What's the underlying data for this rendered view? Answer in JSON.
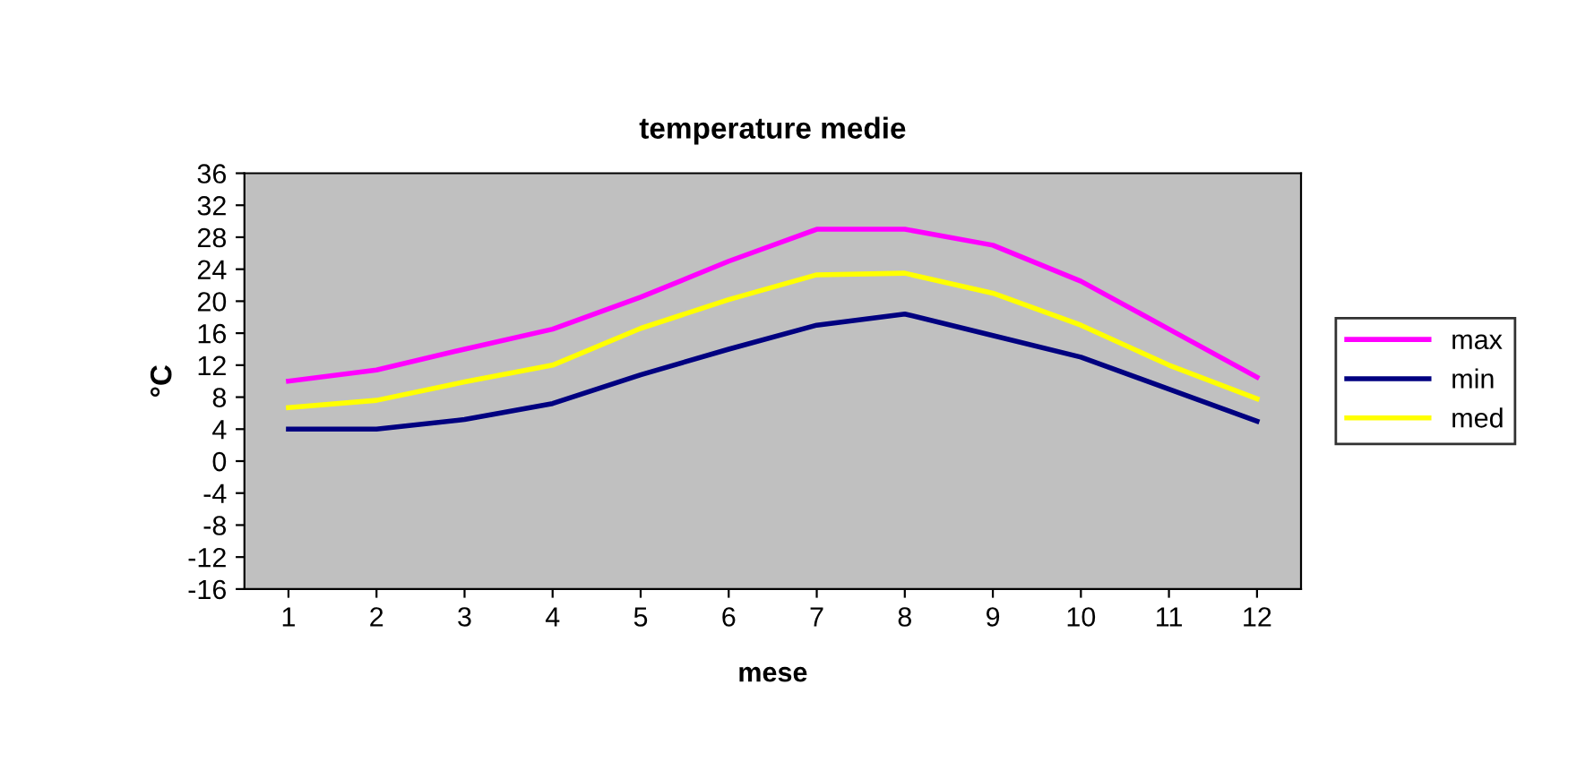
{
  "chart_data": {
    "type": "line",
    "title": "temperature medie",
    "xlabel": "mese",
    "ylabel": "°C",
    "categories": [
      "1",
      "2",
      "3",
      "4",
      "5",
      "6",
      "7",
      "8",
      "9",
      "10",
      "11",
      "12"
    ],
    "series": [
      {
        "name": "max",
        "color": "#ff00ff",
        "values": [
          10,
          11.4,
          14,
          16.5,
          20.5,
          25,
          29,
          29,
          27,
          22.5,
          16.5,
          10.5
        ]
      },
      {
        "name": "min",
        "color": "#000080",
        "values": [
          4,
          4,
          5.2,
          7.2,
          10.8,
          14,
          17,
          18.4,
          15.7,
          13,
          9,
          5
        ]
      },
      {
        "name": "med",
        "color": "#ffff00",
        "values": [
          6.7,
          7.6,
          9.9,
          12,
          16.6,
          20.2,
          23.3,
          23.5,
          21,
          17,
          12,
          7.8
        ]
      }
    ],
    "ylim": [
      -16,
      36
    ],
    "yticks": [
      -16,
      -12,
      -8,
      -4,
      0,
      4,
      8,
      12,
      16,
      20,
      24,
      28,
      32,
      36
    ],
    "grid": false,
    "legend": "right",
    "marker": "none",
    "line_style": "solid"
  }
}
